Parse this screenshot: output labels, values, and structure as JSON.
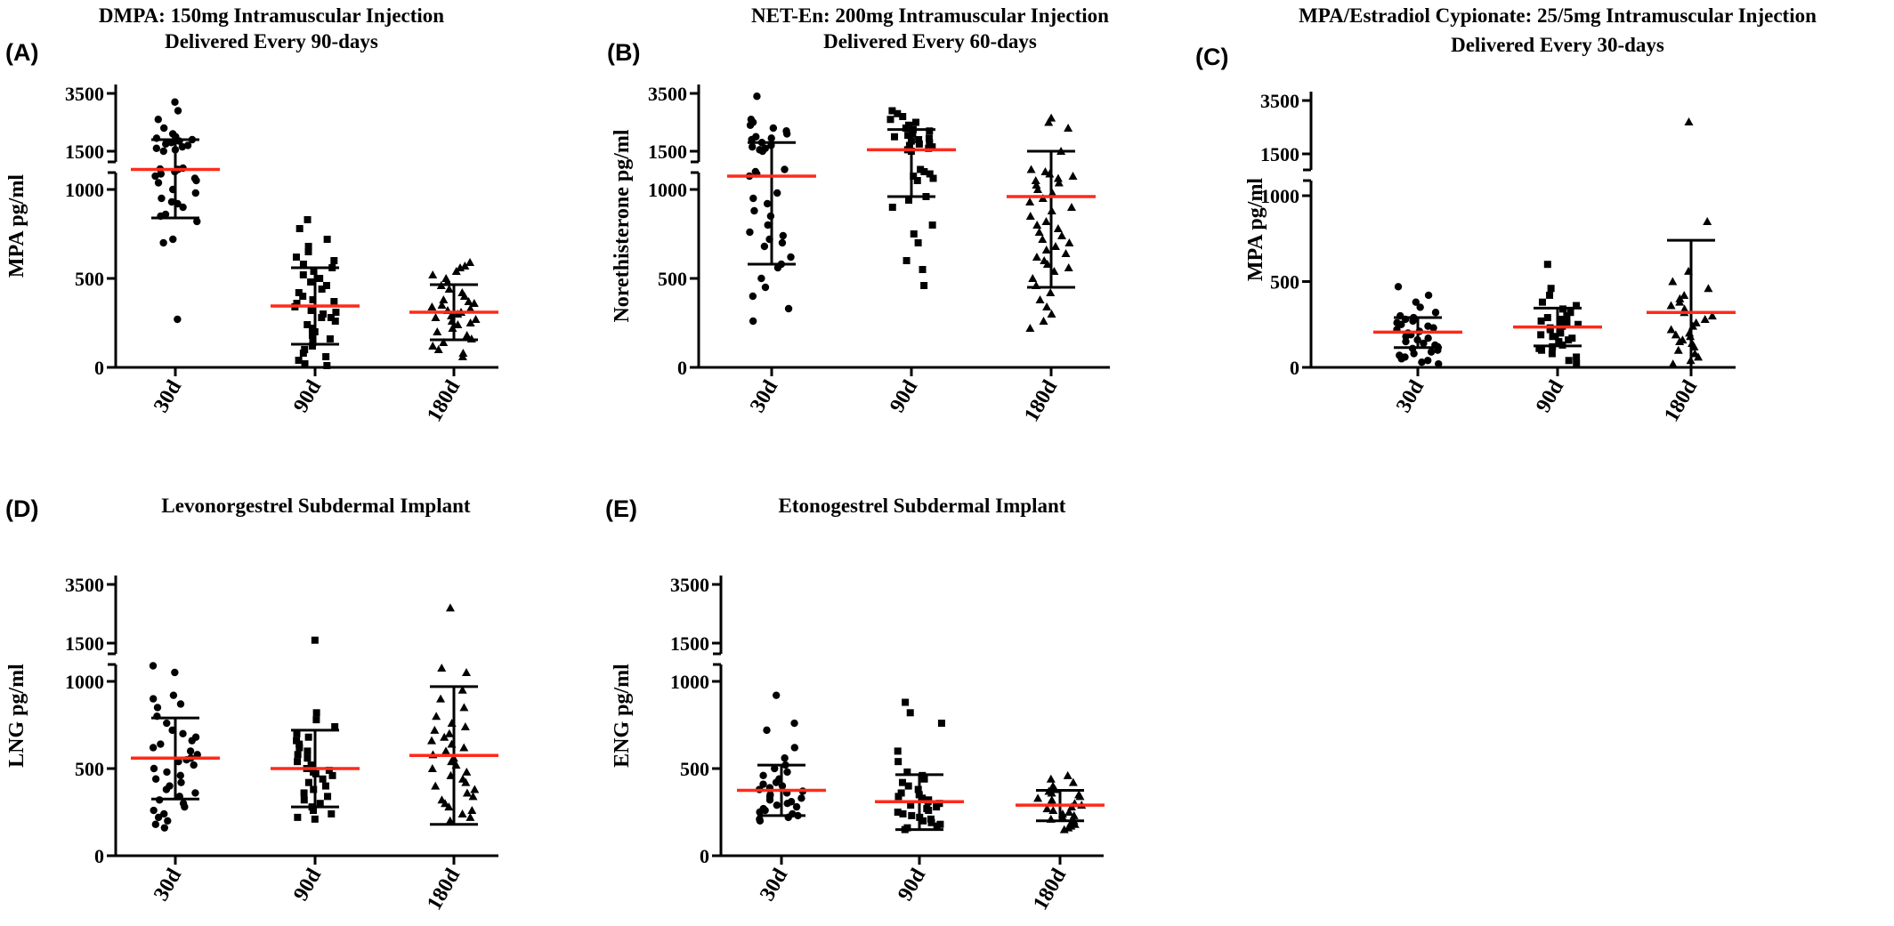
{
  "chart_data": [
    {
      "panel_label": "(A)",
      "title_lines": [
        "DMPA: 150mg Intramuscular Injection",
        "Delivered Every 90-days"
      ],
      "type": "scatter",
      "ylabel": "MPA pg/ml",
      "y_ticks_lower": [
        "0",
        "500",
        "1000"
      ],
      "y_ticks_upper": [
        "1500",
        "3500"
      ],
      "y_axis_break": [
        1000,
        1500
      ],
      "ylim": [
        0,
        3500
      ],
      "categories": [
        "30d",
        "90d",
        "180d"
      ],
      "marker": [
        "circle",
        "square",
        "triangle"
      ],
      "groups": [
        {
          "category": "30d",
          "mean": 1450,
          "sd_low": 840,
          "sd_high": 1900,
          "values": [
            3200,
            2900,
            2600,
            2300,
            2100,
            2000,
            1950,
            1900,
            1850,
            1800,
            1750,
            1700,
            1650,
            1600,
            1550,
            1500,
            1480,
            1460,
            1450,
            1400,
            1350,
            1300,
            1250,
            1200,
            1150,
            1000,
            980,
            950,
            930,
            920,
            900,
            860,
            850,
            820,
            720,
            700,
            270
          ]
        },
        {
          "category": "90d",
          "mean": 345,
          "sd_low": 130,
          "sd_high": 560,
          "values": [
            830,
            780,
            720,
            680,
            650,
            620,
            600,
            580,
            560,
            540,
            520,
            500,
            480,
            460,
            440,
            420,
            400,
            380,
            360,
            340,
            320,
            300,
            280,
            260,
            240,
            220,
            200,
            180,
            160,
            140,
            120,
            100,
            80,
            60,
            40,
            20,
            10,
            280,
            310,
            370
          ]
        },
        {
          "category": "180d",
          "mean": 310,
          "sd_low": 155,
          "sd_high": 465,
          "values": [
            590,
            570,
            560,
            540,
            520,
            500,
            480,
            460,
            440,
            420,
            400,
            380,
            360,
            340,
            320,
            300,
            290,
            280,
            270,
            260,
            250,
            240,
            220,
            200,
            180,
            160,
            140,
            120,
            100,
            80,
            60,
            310,
            330,
            350,
            370
          ]
        }
      ]
    },
    {
      "panel_label": "(B)",
      "title_lines": [
        "NET-En: 200mg Intramuscular Injection",
        "Delivered Every 60-days"
      ],
      "type": "scatter",
      "ylabel": "Norethisterone pg/ml",
      "y_ticks_lower": [
        "0",
        "500",
        "1000"
      ],
      "y_ticks_upper": [
        "1500",
        "3500"
      ],
      "y_axis_break": [
        1000,
        1500
      ],
      "ylim": [
        0,
        3500
      ],
      "categories": [
        "30d",
        "90d",
        "180d"
      ],
      "marker": [
        "circle",
        "square",
        "triangle"
      ],
      "groups": [
        {
          "category": "30d",
          "mean": 1300,
          "sd_low": 580,
          "sd_high": 1800,
          "values": [
            3400,
            2600,
            2500,
            2400,
            2300,
            2200,
            2100,
            2000,
            1950,
            1900,
            1800,
            1700,
            1650,
            1600,
            1550,
            1500,
            1450,
            1400,
            1350,
            1300,
            980,
            950,
            920,
            880,
            850,
            800,
            760,
            740,
            720,
            700,
            680,
            620,
            580,
            560,
            500,
            450,
            400,
            330,
            260
          ]
        },
        {
          "category": "90d",
          "mean": 1550,
          "sd_low": 960,
          "sd_high": 2250,
          "values": [
            2900,
            2800,
            2700,
            2600,
            2500,
            2400,
            2300,
            2250,
            2200,
            2100,
            2050,
            2000,
            1950,
            1900,
            1850,
            1800,
            1750,
            1700,
            1650,
            1600,
            1550,
            1500,
            1450,
            1400,
            1350,
            1300,
            1250,
            1200,
            960,
            940,
            900,
            800,
            750,
            700,
            600,
            550,
            460
          ]
        },
        {
          "category": "180d",
          "mean": 960,
          "sd_low": 450,
          "sd_high": 1500,
          "values": [
            2650,
            2500,
            2300,
            1500,
            1450,
            1400,
            1350,
            1300,
            1250,
            1200,
            1150,
            1100,
            1000,
            980,
            950,
            930,
            900,
            880,
            850,
            820,
            800,
            780,
            760,
            740,
            720,
            700,
            680,
            660,
            640,
            620,
            600,
            580,
            560,
            540,
            500,
            460,
            420,
            380,
            340,
            300,
            260,
            220
          ]
        }
      ]
    },
    {
      "panel_label": "(C)",
      "title_lines": [
        "MPA/Estradiol Cypionate: 25/5mg Intramuscular Injection",
        "Delivered Every 30-days"
      ],
      "type": "scatter",
      "ylabel": "MPA pg/ml",
      "y_ticks_lower": [
        "0",
        "500",
        "1000"
      ],
      "y_ticks_upper": [
        "1500",
        "3500"
      ],
      "y_axis_break": [
        1000,
        1500
      ],
      "ylim": [
        0,
        3500
      ],
      "categories": [
        "30d",
        "90d",
        "180d"
      ],
      "marker": [
        "circle",
        "square",
        "triangle"
      ],
      "groups": [
        {
          "category": "30d",
          "mean": 205,
          "sd_low": 115,
          "sd_high": 290,
          "values": [
            470,
            420,
            380,
            350,
            320,
            300,
            290,
            280,
            270,
            260,
            250,
            240,
            230,
            220,
            210,
            200,
            190,
            180,
            170,
            160,
            150,
            140,
            130,
            120,
            110,
            100,
            90,
            80,
            70,
            60,
            50,
            40,
            30,
            20
          ]
        },
        {
          "category": "90d",
          "mean": 235,
          "sd_low": 125,
          "sd_high": 345,
          "values": [
            600,
            460,
            420,
            380,
            360,
            340,
            320,
            300,
            290,
            280,
            270,
            260,
            250,
            240,
            230,
            220,
            210,
            200,
            190,
            180,
            170,
            160,
            150,
            140,
            130,
            120,
            110,
            100,
            80,
            60,
            40,
            20
          ]
        },
        {
          "category": "180d",
          "mean": 320,
          "sd_low": 0,
          "sd_high": 740,
          "values": [
            2700,
            850,
            560,
            500,
            460,
            420,
            400,
            380,
            360,
            340,
            320,
            300,
            280,
            260,
            240,
            220,
            200,
            190,
            180,
            160,
            150,
            140,
            120,
            100,
            80,
            60,
            40,
            20
          ]
        }
      ]
    },
    {
      "panel_label": "(D)",
      "title_lines": [
        "Levonorgestrel Subdermal Implant"
      ],
      "type": "scatter",
      "ylabel": "LNG pg/ml",
      "y_ticks_lower": [
        "0",
        "500",
        "1000"
      ],
      "y_ticks_upper": [
        "1500",
        "3500"
      ],
      "y_axis_break": [
        1000,
        1500
      ],
      "ylim": [
        0,
        3500
      ],
      "categories": [
        "30d",
        "90d",
        "180d"
      ],
      "marker": [
        "circle",
        "square",
        "triangle"
      ],
      "groups": [
        {
          "category": "30d",
          "mean": 560,
          "sd_low": 325,
          "sd_high": 790,
          "values": [
            1350,
            1200,
            920,
            900,
            870,
            850,
            800,
            760,
            720,
            700,
            680,
            660,
            640,
            620,
            600,
            580,
            560,
            550,
            540,
            520,
            500,
            480,
            460,
            440,
            420,
            400,
            380,
            360,
            340,
            320,
            300,
            280,
            260,
            240,
            220,
            200,
            180,
            160
          ]
        },
        {
          "category": "90d",
          "mean": 500,
          "sd_low": 280,
          "sd_high": 720,
          "values": [
            1600,
            820,
            780,
            740,
            700,
            680,
            660,
            640,
            620,
            600,
            580,
            560,
            540,
            520,
            500,
            490,
            480,
            470,
            460,
            440,
            420,
            400,
            380,
            360,
            340,
            320,
            300,
            280,
            260,
            240,
            220,
            210
          ]
        },
        {
          "category": "180d",
          "mean": 575,
          "sd_low": 180,
          "sd_high": 970,
          "values": [
            2700,
            1300,
            1200,
            950,
            900,
            850,
            800,
            760,
            740,
            720,
            700,
            680,
            660,
            640,
            620,
            600,
            580,
            560,
            540,
            520,
            500,
            480,
            460,
            440,
            420,
            400,
            380,
            360,
            340,
            320,
            300,
            280,
            260,
            240,
            220,
            200
          ]
        }
      ]
    },
    {
      "panel_label": "(E)",
      "title_lines": [
        "Etonogestrel Subdermal Implant"
      ],
      "type": "scatter",
      "ylabel": "ENG pg/ml",
      "y_ticks_lower": [
        "0",
        "500",
        "1000"
      ],
      "y_ticks_upper": [
        "1500",
        "3500"
      ],
      "y_axis_break": [
        1000,
        1500
      ],
      "ylim": [
        0,
        3500
      ],
      "categories": [
        "30d",
        "90d",
        "180d"
      ],
      "marker": [
        "circle",
        "square",
        "triangle"
      ],
      "groups": [
        {
          "category": "30d",
          "mean": 375,
          "sd_low": 230,
          "sd_high": 520,
          "values": [
            920,
            760,
            720,
            620,
            560,
            520,
            500,
            480,
            460,
            440,
            420,
            410,
            400,
            390,
            380,
            370,
            360,
            350,
            340,
            330,
            320,
            310,
            300,
            290,
            280,
            270,
            260,
            250,
            240,
            230,
            220,
            210,
            200
          ]
        },
        {
          "category": "90d",
          "mean": 310,
          "sd_low": 150,
          "sd_high": 465,
          "values": [
            880,
            820,
            760,
            600,
            540,
            480,
            460,
            440,
            420,
            400,
            380,
            360,
            350,
            340,
            330,
            320,
            310,
            300,
            290,
            280,
            270,
            260,
            250,
            240,
            230,
            220,
            210,
            200,
            190,
            180,
            170,
            160,
            150
          ]
        },
        {
          "category": "180d",
          "mean": 290,
          "sd_low": 200,
          "sd_high": 375,
          "values": [
            460,
            440,
            420,
            400,
            380,
            370,
            360,
            350,
            340,
            330,
            320,
            310,
            300,
            290,
            280,
            270,
            260,
            250,
            240,
            230,
            220,
            210,
            200,
            190,
            180,
            170,
            160,
            150
          ]
        }
      ]
    }
  ],
  "colors": {
    "mean_line": "#ff2a1a",
    "points": "#000000",
    "axes": "#000000"
  }
}
